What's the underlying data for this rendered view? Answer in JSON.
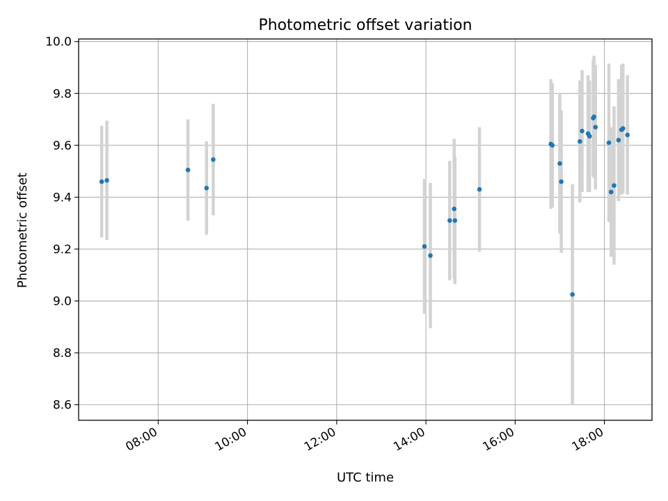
{
  "chart_data": {
    "type": "scatter",
    "title": "Photometric offset variation",
    "xlabel": "UTC time",
    "ylabel": "Photometric offset",
    "xlim": [
      "06:13",
      "19:04"
    ],
    "ylim": [
      8.54,
      10.01
    ],
    "x_ticks": [
      "08:00",
      "10:00",
      "12:00",
      "14:00",
      "16:00",
      "18:00"
    ],
    "y_ticks": [
      8.6,
      8.8,
      9.0,
      9.2,
      9.4,
      9.6,
      9.8,
      10.0
    ],
    "y_tick_labels": [
      "8.6",
      "8.8",
      "9.0",
      "9.2",
      "9.4",
      "9.6",
      "9.8",
      "10.0"
    ],
    "grid": true,
    "colors": {
      "points": "#1f77b4",
      "error_bars": "#d3d3d3"
    },
    "points": [
      {
        "x": "06:44",
        "y": 9.46,
        "err": 0.215
      },
      {
        "x": "06:51",
        "y": 9.465,
        "err": 0.23
      },
      {
        "x": "08:40",
        "y": 9.505,
        "err": 0.195
      },
      {
        "x": "09:05",
        "y": 9.435,
        "err": 0.18
      },
      {
        "x": "09:14",
        "y": 9.545,
        "err": 0.215
      },
      {
        "x": "13:58",
        "y": 9.21,
        "err": 0.26
      },
      {
        "x": "14:06",
        "y": 9.175,
        "err": 0.28
      },
      {
        "x": "14:32",
        "y": 9.31,
        "err": 0.23
      },
      {
        "x": "14:38",
        "y": 9.355,
        "err": 0.27
      },
      {
        "x": "14:39",
        "y": 9.31,
        "err": 0.245
      },
      {
        "x": "15:12",
        "y": 9.43,
        "err": 0.24
      },
      {
        "x": "16:48",
        "y": 9.605,
        "err": 0.25
      },
      {
        "x": "16:50",
        "y": 9.6,
        "err": 0.24
      },
      {
        "x": "17:00",
        "y": 9.53,
        "err": 0.27
      },
      {
        "x": "17:02",
        "y": 9.46,
        "err": 0.275
      },
      {
        "x": "17:17",
        "y": 9.025,
        "err": 0.425
      },
      {
        "x": "17:27",
        "y": 9.615,
        "err": 0.235
      },
      {
        "x": "17:30",
        "y": 9.655,
        "err": 0.235
      },
      {
        "x": "17:38",
        "y": 9.645,
        "err": 0.225
      },
      {
        "x": "17:40",
        "y": 9.635,
        "err": 0.215
      },
      {
        "x": "17:45",
        "y": 9.705,
        "err": 0.225
      },
      {
        "x": "17:46",
        "y": 9.71,
        "err": 0.235
      },
      {
        "x": "17:48",
        "y": 9.67,
        "err": 0.24
      },
      {
        "x": "18:06",
        "y": 9.61,
        "err": 0.305
      },
      {
        "x": "18:09",
        "y": 9.42,
        "err": 0.25
      },
      {
        "x": "18:13",
        "y": 9.445,
        "err": 0.305
      },
      {
        "x": "18:19",
        "y": 9.62,
        "err": 0.235
      },
      {
        "x": "18:23",
        "y": 9.66,
        "err": 0.25
      },
      {
        "x": "18:25",
        "y": 9.665,
        "err": 0.25
      },
      {
        "x": "18:31",
        "y": 9.64,
        "err": 0.23
      }
    ]
  }
}
